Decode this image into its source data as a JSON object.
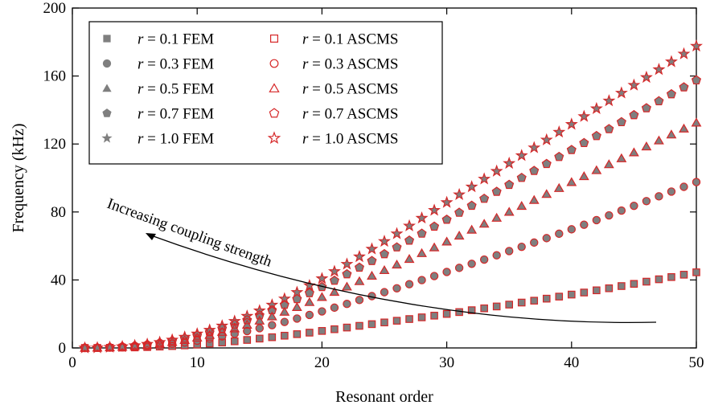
{
  "chart_data": {
    "type": "scatter",
    "xlabel": "Resonant order",
    "ylabel": "Frequency (kHz)",
    "xlim": [
      0,
      50
    ],
    "ylim": [
      0,
      200
    ],
    "xticks": [
      0,
      10,
      20,
      30,
      40,
      50
    ],
    "yticks": [
      0,
      40,
      80,
      120,
      160,
      200
    ],
    "grid": false,
    "legend_position": "top-left",
    "annotation": "Increasing coupling strength",
    "colors": {
      "fem": "#7f7f7f",
      "ascms": "#d62728"
    },
    "x": [
      1,
      2,
      3,
      4,
      5,
      6,
      7,
      8,
      9,
      10,
      11,
      12,
      13,
      14,
      15,
      16,
      17,
      18,
      19,
      20,
      21,
      22,
      23,
      24,
      25,
      26,
      27,
      28,
      29,
      30,
      31,
      32,
      33,
      34,
      35,
      36,
      37,
      38,
      39,
      40,
      41,
      42,
      43,
      44,
      45,
      46,
      47,
      48,
      49,
      50
    ],
    "series": [
      {
        "name": "r = 0.1 FEM",
        "method": "FEM",
        "marker": "square",
        "values": [
          0.0,
          0.0,
          0.1,
          0.2,
          0.3,
          0.5,
          0.8,
          1.1,
          1.5,
          2.0,
          2.6,
          3.2,
          3.9,
          4.7,
          5.5,
          6.3,
          7.2,
          8.1,
          9.0,
          10.0,
          11.0,
          12.0,
          13.0,
          14.0,
          15.0,
          16.0,
          17.0,
          18.0,
          19.0,
          20.0,
          21.1,
          22.2,
          23.3,
          24.4,
          25.5,
          26.7,
          27.8,
          29.0,
          30.2,
          31.4,
          32.6,
          33.9,
          35.1,
          36.4,
          37.7,
          39.0,
          40.4,
          41.7,
          43.1,
          44.5
        ]
      },
      {
        "name": "r = 0.3 FEM",
        "method": "FEM",
        "marker": "circle",
        "values": [
          0.0,
          0.1,
          0.2,
          0.4,
          0.7,
          1.1,
          1.7,
          2.4,
          3.3,
          4.3,
          5.5,
          6.8,
          8.3,
          9.9,
          11.6,
          13.4,
          15.3,
          17.3,
          19.4,
          21.5,
          23.7,
          25.9,
          28.2,
          30.5,
          32.8,
          35.1,
          37.5,
          39.9,
          42.3,
          44.7,
          47.1,
          49.5,
          52.0,
          54.5,
          57.0,
          59.5,
          62.0,
          64.6,
          67.2,
          69.8,
          72.5,
          75.2,
          78.0,
          80.8,
          83.6,
          86.4,
          89.2,
          92.0,
          94.8,
          97.6
        ]
      },
      {
        "name": "r = 0.5 FEM",
        "method": "FEM",
        "marker": "triangle",
        "values": [
          0.0,
          0.1,
          0.3,
          0.6,
          1.0,
          1.6,
          2.4,
          3.4,
          4.6,
          6.0,
          7.6,
          9.4,
          11.4,
          13.6,
          16.0,
          18.5,
          21.2,
          24.0,
          26.9,
          29.9,
          32.9,
          36.0,
          39.2,
          42.4,
          45.7,
          49.0,
          52.3,
          55.7,
          59.1,
          62.5,
          66.0,
          69.5,
          73.0,
          76.5,
          80.0,
          83.5,
          87.0,
          90.5,
          94.0,
          97.5,
          101.0,
          104.5,
          108.0,
          111.5,
          115.0,
          118.5,
          122.0,
          125.5,
          129.0,
          132.5
        ]
      },
      {
        "name": "r = 0.7 FEM",
        "method": "FEM",
        "marker": "pentagon",
        "values": [
          0.0,
          0.1,
          0.3,
          0.7,
          1.2,
          1.9,
          2.9,
          4.1,
          5.6,
          7.3,
          9.2,
          11.4,
          13.8,
          16.4,
          19.2,
          22.2,
          25.4,
          28.8,
          32.3,
          35.9,
          39.6,
          43.4,
          47.3,
          51.2,
          55.2,
          59.2,
          63.2,
          67.3,
          71.4,
          75.5,
          79.6,
          83.7,
          87.8,
          91.9,
          96.0,
          100.1,
          104.2,
          108.3,
          112.4,
          116.5,
          120.6,
          124.7,
          128.8,
          132.9,
          137.0,
          141.1,
          145.2,
          149.3,
          153.4,
          157.5
        ]
      },
      {
        "name": "r = 1.0 FEM",
        "method": "FEM",
        "marker": "star",
        "values": [
          0.0,
          0.1,
          0.4,
          0.8,
          1.4,
          2.2,
          3.3,
          4.7,
          6.4,
          8.3,
          10.5,
          13.0,
          15.7,
          18.7,
          21.9,
          25.3,
          28.9,
          32.7,
          36.7,
          40.8,
          45.0,
          49.3,
          53.7,
          58.2,
          62.7,
          67.2,
          71.8,
          76.4,
          81.0,
          85.6,
          90.2,
          94.8,
          99.4,
          104.0,
          108.6,
          113.2,
          117.8,
          122.4,
          127.0,
          131.6,
          136.2,
          140.8,
          145.4,
          150.0,
          154.6,
          159.2,
          163.8,
          168.4,
          173.0,
          177.6
        ]
      },
      {
        "name": "r = 0.1 ASCMS",
        "method": "ASCMS",
        "marker": "square-open",
        "values": [
          0.0,
          0.0,
          0.1,
          0.2,
          0.3,
          0.5,
          0.8,
          1.1,
          1.5,
          2.0,
          2.6,
          3.2,
          3.9,
          4.7,
          5.5,
          6.3,
          7.2,
          8.1,
          9.0,
          10.0,
          11.0,
          12.0,
          13.0,
          14.0,
          15.0,
          16.0,
          17.0,
          18.0,
          19.0,
          20.0,
          21.1,
          22.2,
          23.3,
          24.4,
          25.5,
          26.7,
          27.8,
          29.0,
          30.2,
          31.4,
          32.6,
          33.9,
          35.1,
          36.4,
          37.7,
          39.0,
          40.4,
          41.7,
          43.1,
          44.5
        ]
      },
      {
        "name": "r = 0.3 ASCMS",
        "method": "ASCMS",
        "marker": "circle-open",
        "values": [
          0.0,
          0.1,
          0.2,
          0.4,
          0.7,
          1.1,
          1.7,
          2.4,
          3.3,
          4.3,
          5.5,
          6.8,
          8.3,
          9.9,
          11.6,
          13.4,
          15.3,
          17.3,
          19.4,
          21.5,
          23.7,
          25.9,
          28.2,
          30.5,
          32.8,
          35.1,
          37.5,
          39.9,
          42.3,
          44.7,
          47.1,
          49.5,
          52.0,
          54.5,
          57.0,
          59.5,
          62.0,
          64.6,
          67.2,
          69.8,
          72.5,
          75.2,
          78.0,
          80.8,
          83.6,
          86.4,
          89.2,
          92.0,
          94.8,
          97.6
        ]
      },
      {
        "name": "r = 0.5 ASCMS",
        "method": "ASCMS",
        "marker": "triangle-open",
        "values": [
          0.0,
          0.1,
          0.3,
          0.6,
          1.0,
          1.6,
          2.4,
          3.4,
          4.6,
          6.0,
          7.6,
          9.4,
          11.4,
          13.6,
          16.0,
          18.5,
          21.2,
          24.0,
          26.9,
          29.9,
          32.9,
          36.0,
          39.2,
          42.4,
          45.7,
          49.0,
          52.3,
          55.7,
          59.1,
          62.5,
          66.0,
          69.5,
          73.0,
          76.5,
          80.0,
          83.5,
          87.0,
          90.5,
          94.0,
          97.5,
          101.0,
          104.5,
          108.0,
          111.5,
          115.0,
          118.5,
          122.0,
          125.5,
          129.0,
          132.5
        ]
      },
      {
        "name": "r = 0.7 ASCMS",
        "method": "ASCMS",
        "marker": "pentagon-open",
        "values": [
          0.0,
          0.1,
          0.3,
          0.7,
          1.2,
          1.9,
          2.9,
          4.1,
          5.6,
          7.3,
          9.2,
          11.4,
          13.8,
          16.4,
          19.2,
          22.2,
          25.4,
          28.8,
          32.3,
          35.9,
          39.6,
          43.4,
          47.3,
          51.2,
          55.2,
          59.2,
          63.2,
          67.3,
          71.4,
          75.5,
          79.6,
          83.7,
          87.8,
          91.9,
          96.0,
          100.1,
          104.2,
          108.3,
          112.4,
          116.5,
          120.6,
          124.7,
          128.8,
          132.9,
          137.0,
          141.1,
          145.2,
          149.3,
          153.4,
          157.5
        ]
      },
      {
        "name": "r = 1.0 ASCMS",
        "method": "ASCMS",
        "marker": "star-open",
        "values": [
          0.0,
          0.1,
          0.4,
          0.8,
          1.4,
          2.2,
          3.3,
          4.7,
          6.4,
          8.3,
          10.5,
          13.0,
          15.7,
          18.7,
          21.9,
          25.3,
          28.9,
          32.7,
          36.7,
          40.8,
          45.0,
          49.3,
          53.7,
          58.2,
          62.7,
          67.2,
          71.8,
          76.4,
          81.0,
          85.6,
          90.2,
          94.8,
          99.4,
          104.0,
          108.6,
          113.2,
          117.8,
          122.4,
          127.0,
          131.6,
          136.2,
          140.8,
          145.4,
          150.0,
          154.6,
          159.2,
          163.8,
          168.4,
          173.0,
          177.6
        ]
      }
    ]
  }
}
